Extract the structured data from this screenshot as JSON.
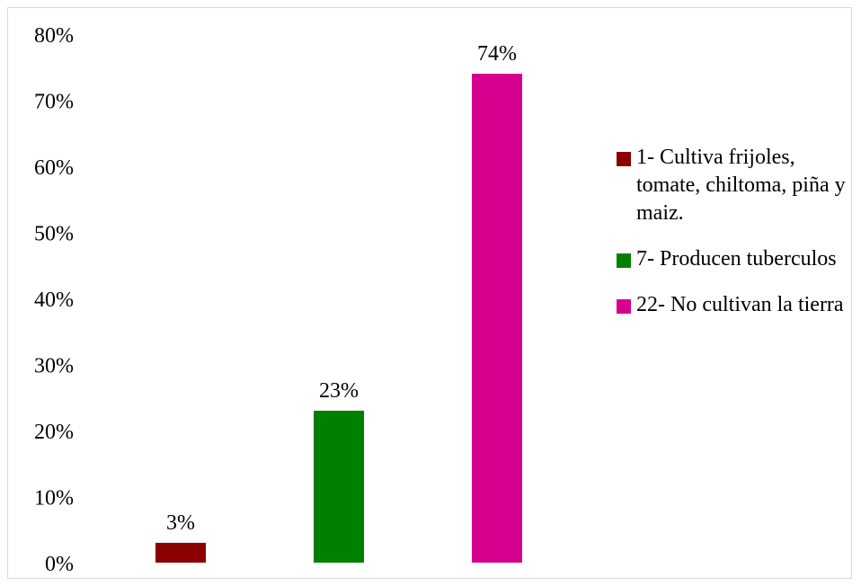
{
  "chart_data": {
    "type": "bar",
    "categories": [
      "1- Cultiva frijoles, tomate, chiltoma, piña y maiz.",
      "7- Producen tuberculos",
      "22- No cultivan la tierra"
    ],
    "values": [
      3,
      23,
      74
    ],
    "data_labels": [
      "3%",
      "23%",
      "74%"
    ],
    "colors": [
      "#8b0000",
      "#008000",
      "#d6008f"
    ],
    "ylim": [
      0,
      80
    ],
    "yticks": [
      0,
      10,
      20,
      30,
      40,
      50,
      60,
      70,
      80
    ],
    "ytick_labels": [
      "0%",
      "10%",
      "20%",
      "30%",
      "40%",
      "50%",
      "60%",
      "70%",
      "80%"
    ],
    "grid": false,
    "legend_position": "right",
    "title": "",
    "xlabel": "",
    "ylabel": ""
  }
}
